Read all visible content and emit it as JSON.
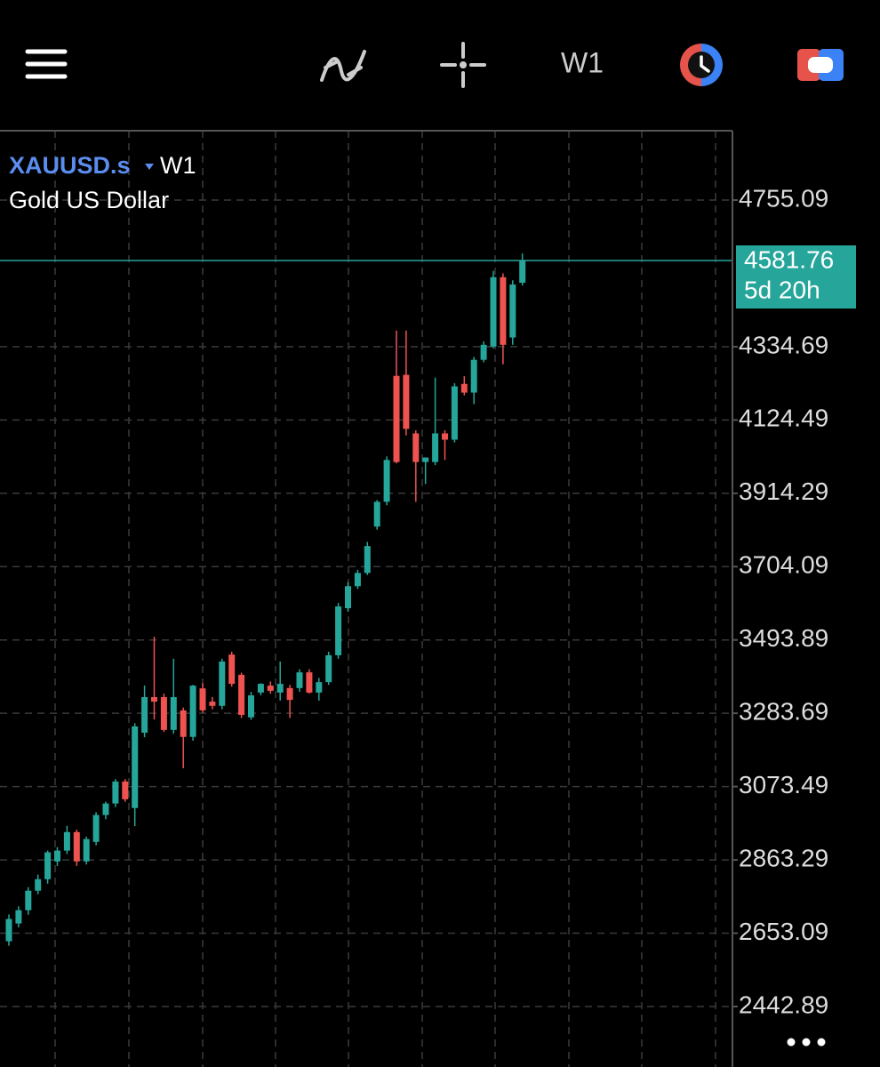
{
  "toolbar": {
    "timeframe": "W1"
  },
  "chart_data": {
    "type": "candlestick",
    "symbol": "XAUUSD.s",
    "timeframe": "W1",
    "subtitle": "Gold US Dollar",
    "open": [
      2630,
      2681,
      2719,
      2775,
      2808,
      2859,
      2890,
      2943,
      2859,
      2915,
      2992,
      3025,
      3088,
      3012,
      3228,
      3330,
      3330,
      3236,
      3292,
      3216,
      3355,
      3317,
      3305,
      3452,
      3394,
      3272,
      3343,
      3363,
      3343,
      3356,
      3356,
      3401,
      3343,
      3373,
      3450,
      3585,
      3648,
      3686,
      3819,
      3890,
      4251,
      4254,
      4086,
      4004,
      4004,
      4086,
      4068,
      4228,
      4203,
      4297,
      4335,
      4534,
      4361,
      4518
    ],
    "high": [
      2707,
      2730,
      2785,
      2821,
      2890,
      2900,
      2961,
      2950,
      2930,
      3000,
      3030,
      3095,
      3095,
      3255,
      3363,
      3503,
      3340,
      3440,
      3300,
      3365,
      3370,
      3330,
      3440,
      3460,
      3400,
      3345,
      3370,
      3375,
      3432,
      3365,
      3410,
      3410,
      3385,
      3460,
      3600,
      3660,
      3695,
      3775,
      3895,
      4020,
      4381,
      4381,
      4095,
      4017,
      4246,
      4095,
      4230,
      4250,
      4305,
      4350,
      4552,
      4545,
      4525,
      4602
    ],
    "low": [
      2617,
      2670,
      2706,
      2765,
      2795,
      2846,
      2880,
      2846,
      2850,
      2905,
      2980,
      3015,
      3030,
      2960,
      3215,
      3266,
      3230,
      3225,
      3126,
      3205,
      3285,
      3295,
      3295,
      3360,
      3270,
      3265,
      3335,
      3340,
      3320,
      3270,
      3345,
      3340,
      3320,
      3365,
      3440,
      3575,
      3640,
      3680,
      3810,
      3880,
      4000,
      4080,
      3890,
      3941,
      3995,
      4010,
      4060,
      4195,
      4170,
      4290,
      4330,
      4284,
      4340,
      4510
    ],
    "close": [
      2694,
      2719,
      2775,
      2808,
      2885,
      2890,
      2943,
      2859,
      2923,
      2992,
      3025,
      3088,
      3037,
      3246,
      3330,
      3317,
      3236,
      3330,
      3216,
      3363,
      3292,
      3305,
      3432,
      3368,
      3279,
      3335,
      3368,
      3348,
      3368,
      3322,
      3401,
      3343,
      3373,
      3450,
      3590,
      3648,
      3686,
      3763,
      3890,
      4010,
      4004,
      4099,
      4004,
      4017,
      4086,
      4068,
      4221,
      4203,
      4297,
      4340,
      4534,
      4340,
      4513,
      4581.76
    ],
    "ylim": [
      2269.5,
      4953.9
    ],
    "yticks": [
      4755.09,
      4334.69,
      4124.49,
      3914.29,
      3704.09,
      3493.89,
      3283.69,
      3073.49,
      2863.29,
      2653.09,
      2442.89
    ],
    "grid": true,
    "up_color": "#26a69a",
    "down_color": "#ef5350",
    "countdown": "5d 20h"
  }
}
